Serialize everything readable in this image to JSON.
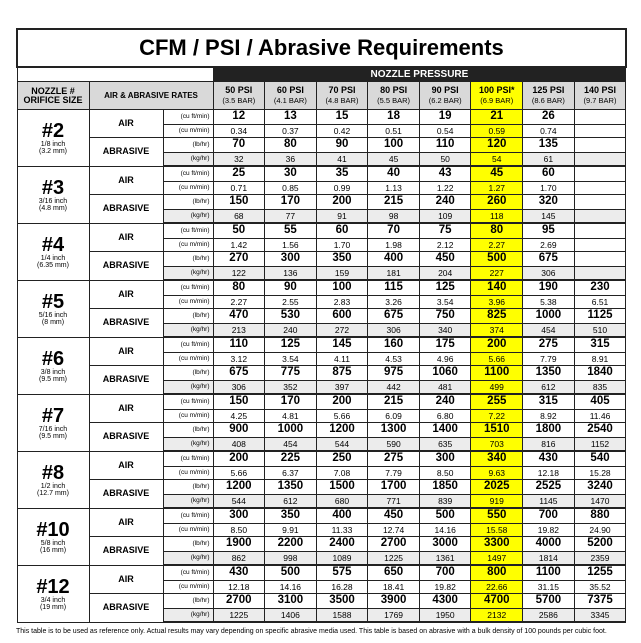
{
  "title": "CFM / PSI / Abrasive Requirements",
  "header": {
    "group": "NOZZLE PRESSURE",
    "nozzle": "NOZZLE #",
    "orifice": "ORIFICE SIZE",
    "rates": "AIR & ABRASIVE RATES",
    "columns": [
      {
        "psi": "50 PSI",
        "bar": "(3.5 BAR)"
      },
      {
        "psi": "60 PSI",
        "bar": "(4.1 BAR)"
      },
      {
        "psi": "70 PSI",
        "bar": "(4.8 BAR)"
      },
      {
        "psi": "80 PSI",
        "bar": "(5.5 BAR)"
      },
      {
        "psi": "90 PSI",
        "bar": "(6.2 BAR)"
      },
      {
        "psi": "100 PSI*",
        "bar": "(6.9 BAR)"
      },
      {
        "psi": "125 PSI",
        "bar": "(8.6 BAR)"
      },
      {
        "psi": "140 PSI",
        "bar": "(9.7 BAR)"
      }
    ]
  },
  "labels": {
    "air": "AIR",
    "abrasive": "ABRASIVE",
    "units": [
      "(cu ft/min)",
      "(cu m/min)",
      "(lb/hr)",
      "(kg/hr)"
    ]
  },
  "nozzles": [
    {
      "number": "#2",
      "inch": "1/8 inch",
      "mm": "(3.2 mm)",
      "rows": [
        [
          "12",
          "13",
          "15",
          "18",
          "19",
          "21",
          "26",
          null
        ],
        [
          "0.34",
          "0.37",
          "0.42",
          "0.51",
          "0.54",
          "0.59",
          "0.74",
          null
        ],
        [
          "70",
          "80",
          "90",
          "100",
          "110",
          "120",
          "135",
          null
        ],
        [
          "32",
          "36",
          "41",
          "45",
          "50",
          "54",
          "61",
          null
        ]
      ]
    },
    {
      "number": "#3",
      "inch": "3/16 inch",
      "mm": "(4.8 mm)",
      "rows": [
        [
          "25",
          "30",
          "35",
          "40",
          "43",
          "45",
          "60",
          null
        ],
        [
          "0.71",
          "0.85",
          "0.99",
          "1.13",
          "1.22",
          "1.27",
          "1.70",
          null
        ],
        [
          "150",
          "170",
          "200",
          "215",
          "240",
          "260",
          "320",
          null
        ],
        [
          "68",
          "77",
          "91",
          "98",
          "109",
          "118",
          "145",
          null
        ]
      ]
    },
    {
      "number": "#4",
      "inch": "1/4 inch",
      "mm": "(6.35 mm)",
      "rows": [
        [
          "50",
          "55",
          "60",
          "70",
          "75",
          "80",
          "95",
          null
        ],
        [
          "1.42",
          "1.56",
          "1.70",
          "1.98",
          "2.12",
          "2.27",
          "2.69",
          null
        ],
        [
          "270",
          "300",
          "350",
          "400",
          "450",
          "500",
          "675",
          null
        ],
        [
          "122",
          "136",
          "159",
          "181",
          "204",
          "227",
          "306",
          null
        ]
      ]
    },
    {
      "number": "#5",
      "inch": "5/16 inch",
      "mm": "(8 mm)",
      "rows": [
        [
          "80",
          "90",
          "100",
          "115",
          "125",
          "140",
          "190",
          "230"
        ],
        [
          "2.27",
          "2.55",
          "2.83",
          "3.26",
          "3.54",
          "3.96",
          "5.38",
          "6.51"
        ],
        [
          "470",
          "530",
          "600",
          "675",
          "750",
          "825",
          "1000",
          "1125"
        ],
        [
          "213",
          "240",
          "272",
          "306",
          "340",
          "374",
          "454",
          "510"
        ]
      ]
    },
    {
      "number": "#6",
      "inch": "3/8 inch",
      "mm": "(9.5 mm)",
      "rows": [
        [
          "110",
          "125",
          "145",
          "160",
          "175",
          "200",
          "275",
          "315"
        ],
        [
          "3.12",
          "3.54",
          "4.11",
          "4.53",
          "4.96",
          "5.66",
          "7.79",
          "8.91"
        ],
        [
          "675",
          "775",
          "875",
          "975",
          "1060",
          "1100",
          "1350",
          "1840"
        ],
        [
          "306",
          "352",
          "397",
          "442",
          "481",
          "499",
          "612",
          "835"
        ]
      ]
    },
    {
      "number": "#7",
      "inch": "7/16 inch",
      "mm": "(9.5 mm)",
      "rows": [
        [
          "150",
          "170",
          "200",
          "215",
          "240",
          "255",
          "315",
          "405"
        ],
        [
          "4.25",
          "4.81",
          "5.66",
          "6.09",
          "6.80",
          "7.22",
          "8.92",
          "11.46"
        ],
        [
          "900",
          "1000",
          "1200",
          "1300",
          "1400",
          "1510",
          "1800",
          "2540"
        ],
        [
          "408",
          "454",
          "544",
          "590",
          "635",
          "703",
          "816",
          "1152"
        ]
      ]
    },
    {
      "number": "#8",
      "inch": "1/2 inch",
      "mm": "(12.7 mm)",
      "rows": [
        [
          "200",
          "225",
          "250",
          "275",
          "300",
          "340",
          "430",
          "540"
        ],
        [
          "5.66",
          "6.37",
          "7.08",
          "7.79",
          "8.50",
          "9.63",
          "12.18",
          "15.28"
        ],
        [
          "1200",
          "1350",
          "1500",
          "1700",
          "1850",
          "2025",
          "2525",
          "3240"
        ],
        [
          "544",
          "612",
          "680",
          "771",
          "839",
          "919",
          "1145",
          "1470"
        ]
      ]
    },
    {
      "number": "#10",
      "inch": "5/8 inch",
      "mm": "(16 mm)",
      "rows": [
        [
          "300",
          "350",
          "400",
          "450",
          "500",
          "550",
          "700",
          "880"
        ],
        [
          "8.50",
          "9.91",
          "11.33",
          "12.74",
          "14.16",
          "15.58",
          "19.82",
          "24.90"
        ],
        [
          "1900",
          "2200",
          "2400",
          "2700",
          "3000",
          "3300",
          "4000",
          "5200"
        ],
        [
          "862",
          "998",
          "1089",
          "1225",
          "1361",
          "1497",
          "1814",
          "2359"
        ]
      ]
    },
    {
      "number": "#12",
      "inch": "3/4 inch",
      "mm": "(19 mm)",
      "rows": [
        [
          "430",
          "500",
          "575",
          "650",
          "700",
          "800",
          "1100",
          "1255"
        ],
        [
          "12.18",
          "14.16",
          "16.28",
          "18.41",
          "19.82",
          "22.66",
          "31.15",
          "35.52"
        ],
        [
          "2700",
          "3100",
          "3500",
          "3900",
          "4300",
          "4700",
          "5700",
          "7375"
        ],
        [
          "1225",
          "1406",
          "1588",
          "1769",
          "1950",
          "2132",
          "2586",
          "3345"
        ]
      ]
    }
  ],
  "footnote": "This table is to be used as reference only. Actual results may vary depending on specific abrasive media used. This table is based on abrasive with a bulk density of 100 pounds per cubic foot."
}
